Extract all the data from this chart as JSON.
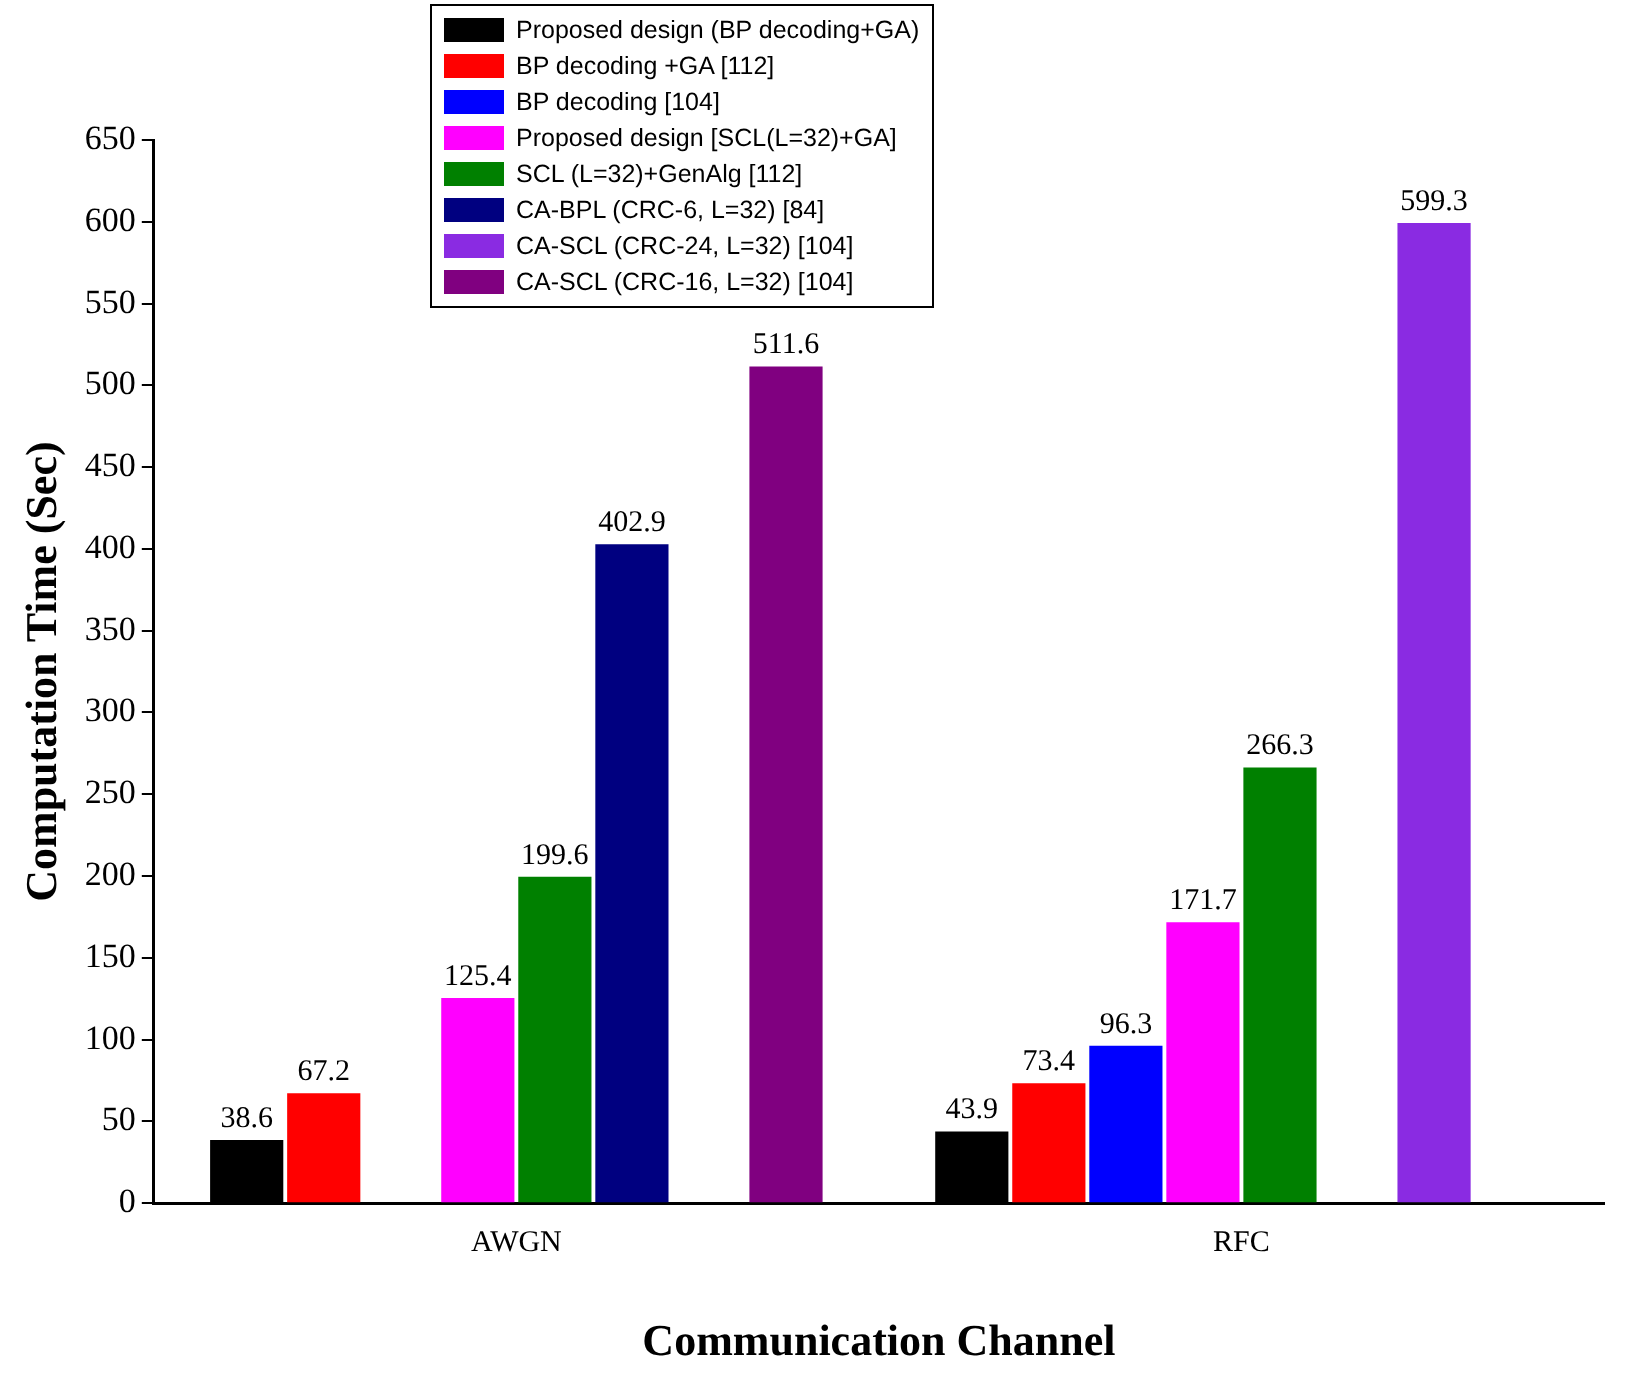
{
  "chart_data": {
    "type": "bar",
    "xlabel": "Communication Channel",
    "ylabel": "Computation Time (Sec)",
    "categories": [
      "AWGN",
      "RFC"
    ],
    "series": [
      {
        "name": "Proposed design (BP decoding+GA)",
        "color": "#000000",
        "values": [
          38.6,
          43.9
        ]
      },
      {
        "name": "BP decoding +GA [112]",
        "color": "#ff0000",
        "values": [
          67.2,
          73.4
        ]
      },
      {
        "name": "BP decoding [104]",
        "color": "#0000ff",
        "values": [
          null,
          96.3
        ]
      },
      {
        "name": "Proposed design [SCL(L=32)+GA]",
        "color": "#ff00ff",
        "values": [
          125.4,
          171.7
        ]
      },
      {
        "name": "SCL (L=32)+GenAlg [112]",
        "color": "#008000",
        "values": [
          199.6,
          266.3
        ]
      },
      {
        "name": "CA-BPL (CRC-6, L=32) [84]",
        "color": "#000080",
        "values": [
          402.9,
          null
        ]
      },
      {
        "name": "CA-SCL (CRC-24, L=32) [104]",
        "color": "#8a2be2",
        "values": [
          null,
          599.3
        ]
      },
      {
        "name": "CA-SCL (CRC-16, L=32) [104]",
        "color": "#800080",
        "values": [
          511.6,
          null
        ]
      }
    ],
    "ylim": [
      0,
      650
    ],
    "yticks": [
      0,
      50,
      100,
      150,
      200,
      250,
      300,
      350,
      400,
      450,
      500,
      550,
      600,
      650
    ],
    "data_labels": true,
    "grid": false,
    "legend": "top"
  }
}
